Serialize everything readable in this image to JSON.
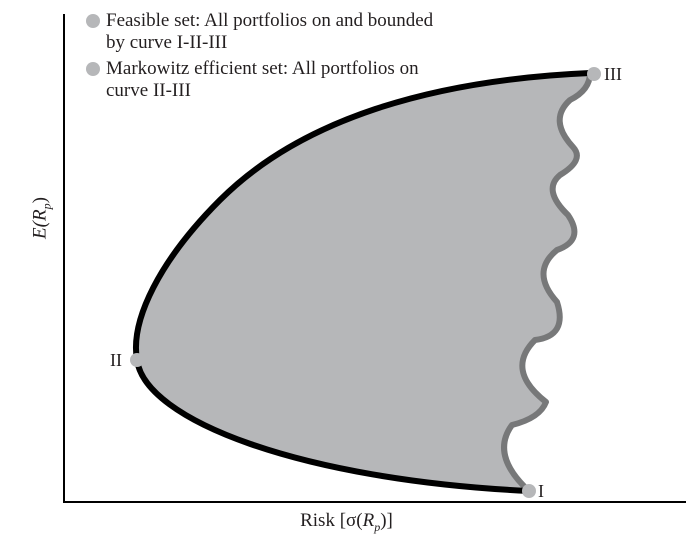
{
  "legend": [
    {
      "text": "Feasible set: All portfolios on and bounded",
      "text2": "by curve I-II-III"
    },
    {
      "text": "Markowitz efficient set: All portfolios on",
      "text2": "curve II-III"
    }
  ],
  "points": {
    "I": "I",
    "II": "II",
    "III": "III"
  },
  "axes": {
    "x_prefix": "Risk [σ(",
    "x_var": "R",
    "x_sub": "p",
    "x_suffix": ")]",
    "y_prefix": "E(",
    "y_var": "R",
    "y_sub": "p",
    "y_suffix": ")"
  },
  "colors": {
    "region_fill": "#b6b7b9",
    "boundary": "#000000",
    "scallop": "#777879",
    "point_marker": "#b6b7b9"
  }
}
